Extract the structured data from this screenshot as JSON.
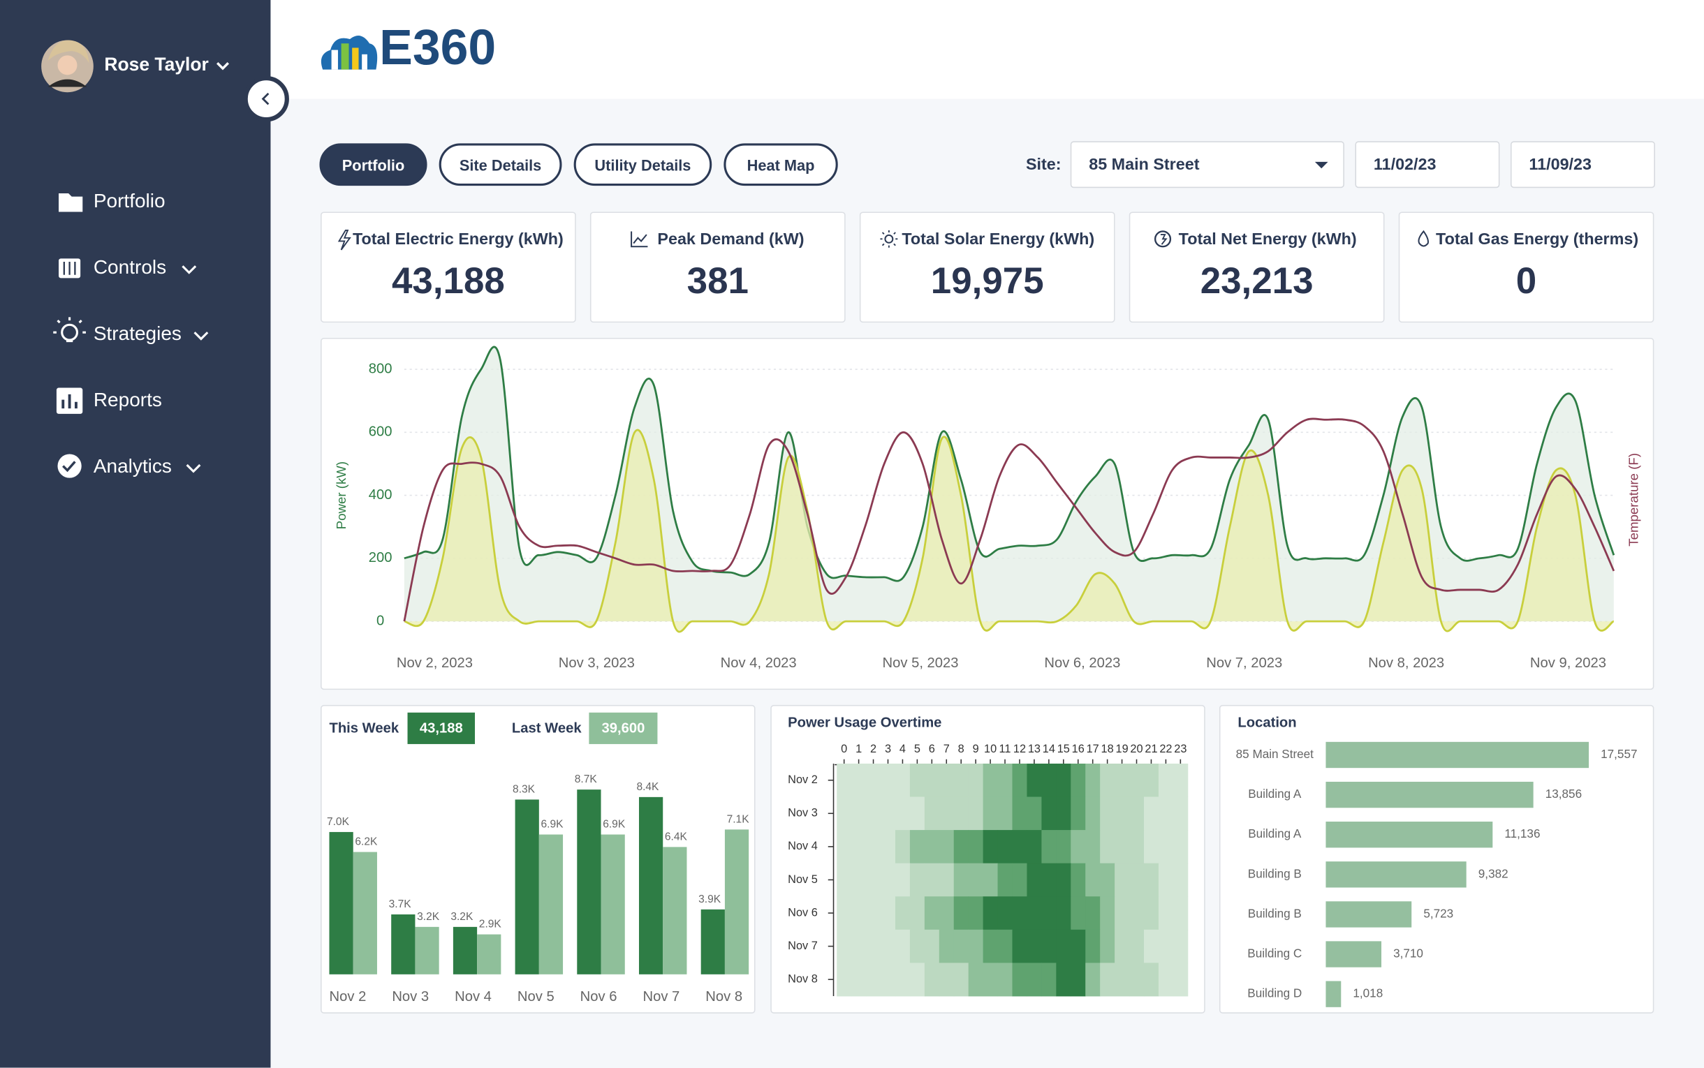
{
  "sidebar": {
    "user": "Rose Taylor",
    "nav": [
      "Portfolio",
      "Controls",
      "Strategies",
      "Reports",
      "Analytics"
    ]
  },
  "header": {
    "logo": "E360"
  },
  "tabs": [
    "Portfolio",
    "Site Details",
    "Utility Details",
    "Heat Map"
  ],
  "filters": {
    "site_label": "Site:",
    "site": "85 Main Street",
    "start_date": "11/02/23",
    "end_date": "11/09/23"
  },
  "kpis": [
    {
      "label": "Total Electric Energy (kWh)",
      "value": "43,188"
    },
    {
      "label": "Peak Demand (kW)",
      "value": "381"
    },
    {
      "label": "Total Solar Energy (kWh)",
      "value": "19,975"
    },
    {
      "label": "Total Net Energy (kWh)",
      "value": "23,213"
    },
    {
      "label": "Total Gas Energy (therms)",
      "value": "0"
    }
  ],
  "power_chart": {
    "type": "line",
    "ylabel": "Power (kW)",
    "y2label": "Temperature (F)",
    "xtick_labels": [
      "Nov 2, 2023",
      "Nov 3, 2023",
      "Nov 4, 2023",
      "Nov 5, 2023",
      "Nov 6, 2023",
      "Nov 7, 2023",
      "Nov 8, 2023",
      "Nov 9, 2023"
    ],
    "ylim": [
      0,
      800
    ],
    "yticks": [
      0,
      200,
      400,
      600,
      800
    ],
    "y2lim": [
      35,
      75
    ],
    "grid": true,
    "series": [
      {
        "color": "#2e7d45",
        "fill": "#e3eee6",
        "values": [
          200,
          220,
          260,
          650,
          800,
          830,
          230,
          210,
          220,
          210,
          200,
          400,
          680,
          750,
          350,
          190,
          160,
          155,
          150,
          250,
          600,
          300,
          150,
          145,
          140,
          140,
          140,
          300,
          600,
          450,
          220,
          230,
          240,
          240,
          260,
          380,
          460,
          500,
          220,
          200,
          210,
          210,
          230,
          450,
          560,
          640,
          240,
          200,
          200,
          200,
          210,
          400,
          650,
          680,
          300,
          200,
          200,
          210,
          230,
          500,
          680,
          700,
          400,
          210
        ]
      },
      {
        "color": "#c8cf3c",
        "fill": "#eaedb0",
        "values": [
          0,
          0,
          200,
          550,
          520,
          100,
          0,
          0,
          0,
          0,
          0,
          250,
          600,
          450,
          0,
          0,
          0,
          0,
          0,
          150,
          520,
          350,
          0,
          0,
          0,
          0,
          0,
          200,
          580,
          400,
          0,
          0,
          0,
          0,
          0,
          50,
          150,
          120,
          0,
          0,
          0,
          0,
          0,
          300,
          540,
          400,
          0,
          0,
          0,
          0,
          0,
          250,
          480,
          420,
          0,
          0,
          0,
          0,
          0,
          300,
          480,
          400,
          0,
          0
        ]
      },
      {
        "color": "#8b3a52",
        "axis": "y2",
        "values": [
          35,
          50,
          59,
          60,
          60,
          58,
          50,
          47,
          47,
          47,
          46,
          45,
          44,
          44,
          43,
          43,
          43,
          44,
          52,
          63,
          62,
          52,
          40,
          42,
          50,
          60,
          65,
          60,
          48,
          41,
          48,
          58,
          63,
          61,
          57,
          53,
          49,
          46,
          46,
          52,
          59,
          61,
          61,
          61,
          61,
          62,
          65,
          67,
          67,
          67,
          66,
          62,
          52,
          42,
          40,
          40,
          40,
          40,
          44,
          52,
          58,
          56,
          50,
          43
        ]
      }
    ]
  },
  "weekly_chart": {
    "type": "bar",
    "categories": [
      "Nov 2",
      "Nov 3",
      "Nov 4",
      "Nov 5",
      "Nov 6",
      "Nov 7",
      "Nov 8"
    ],
    "ylim": [
      1300,
      9000
    ],
    "series": [
      {
        "name": "This Week",
        "total": "43,188",
        "color": "#2e7d45",
        "values": [
          7000,
          3700,
          3200,
          8300,
          8700,
          8400,
          3900
        ],
        "value_labels": [
          "7.0K",
          "3.7K",
          "3.2K",
          "8.3K",
          "8.7K",
          "8.4K",
          "3.9K"
        ]
      },
      {
        "name": "Last Week",
        "total": "39,600",
        "color": "#8fbf9a",
        "values": [
          6200,
          3200,
          2900,
          6900,
          6900,
          6400,
          7100
        ],
        "value_labels": [
          "6.2K",
          "3.2K",
          "2.9K",
          "6.9K",
          "6.9K",
          "6.4K",
          "7.1K"
        ]
      }
    ]
  },
  "heatmap": {
    "type": "heatmap",
    "title": "Power Usage Overtime",
    "x": [
      0,
      1,
      2,
      3,
      4,
      5,
      6,
      7,
      8,
      9,
      10,
      11,
      12,
      13,
      14,
      15,
      16,
      17,
      18,
      19,
      20,
      21,
      22,
      23
    ],
    "y": [
      "Nov 2",
      "Nov 3",
      "Nov 4",
      "Nov 5",
      "Nov 6",
      "Nov 7",
      "Nov 8"
    ],
    "colors": [
      "#d3e6d6",
      "#bcd9c1",
      "#8fc09a",
      "#5fa36f",
      "#2e7d45"
    ],
    "values": [
      [
        1,
        1,
        1,
        1,
        1,
        2,
        2,
        2,
        2,
        2,
        3,
        3,
        4,
        5,
        5,
        5,
        4,
        3,
        2,
        2,
        2,
        2,
        1,
        1
      ],
      [
        1,
        1,
        1,
        1,
        1,
        1,
        2,
        2,
        2,
        2,
        3,
        3,
        4,
        4,
        5,
        5,
        4,
        3,
        2,
        2,
        2,
        1,
        1,
        1
      ],
      [
        1,
        1,
        1,
        1,
        2,
        3,
        3,
        3,
        4,
        4,
        5,
        5,
        5,
        5,
        4,
        4,
        3,
        3,
        2,
        2,
        2,
        1,
        1,
        1
      ],
      [
        1,
        1,
        1,
        1,
        1,
        2,
        2,
        2,
        3,
        3,
        3,
        4,
        4,
        5,
        5,
        5,
        4,
        3,
        3,
        2,
        2,
        2,
        1,
        1
      ],
      [
        1,
        1,
        1,
        1,
        2,
        2,
        3,
        3,
        4,
        4,
        5,
        5,
        5,
        5,
        5,
        5,
        4,
        4,
        3,
        2,
        2,
        2,
        1,
        1
      ],
      [
        1,
        1,
        1,
        1,
        1,
        2,
        2,
        3,
        3,
        3,
        4,
        4,
        5,
        5,
        5,
        5,
        5,
        4,
        3,
        2,
        2,
        1,
        1,
        1
      ],
      [
        1,
        1,
        1,
        1,
        1,
        1,
        2,
        2,
        2,
        3,
        3,
        3,
        4,
        4,
        4,
        5,
        5,
        3,
        2,
        2,
        2,
        2,
        1,
        1
      ]
    ]
  },
  "location_chart": {
    "type": "bar",
    "orientation": "horizontal",
    "title": "Location",
    "categories": [
      "85 Main Street",
      "Building A",
      "Building A",
      "Building B",
      "Building B",
      "Building C",
      "Building D"
    ],
    "values": [
      17557,
      13856,
      11136,
      9382,
      5723,
      3710,
      1018
    ],
    "value_labels": [
      "17,557",
      "13,856",
      "11,136",
      "9,382",
      "5,723",
      "3,710",
      "1,018"
    ],
    "xlim": [
      0,
      17600
    ],
    "color": "#95bf9f"
  }
}
